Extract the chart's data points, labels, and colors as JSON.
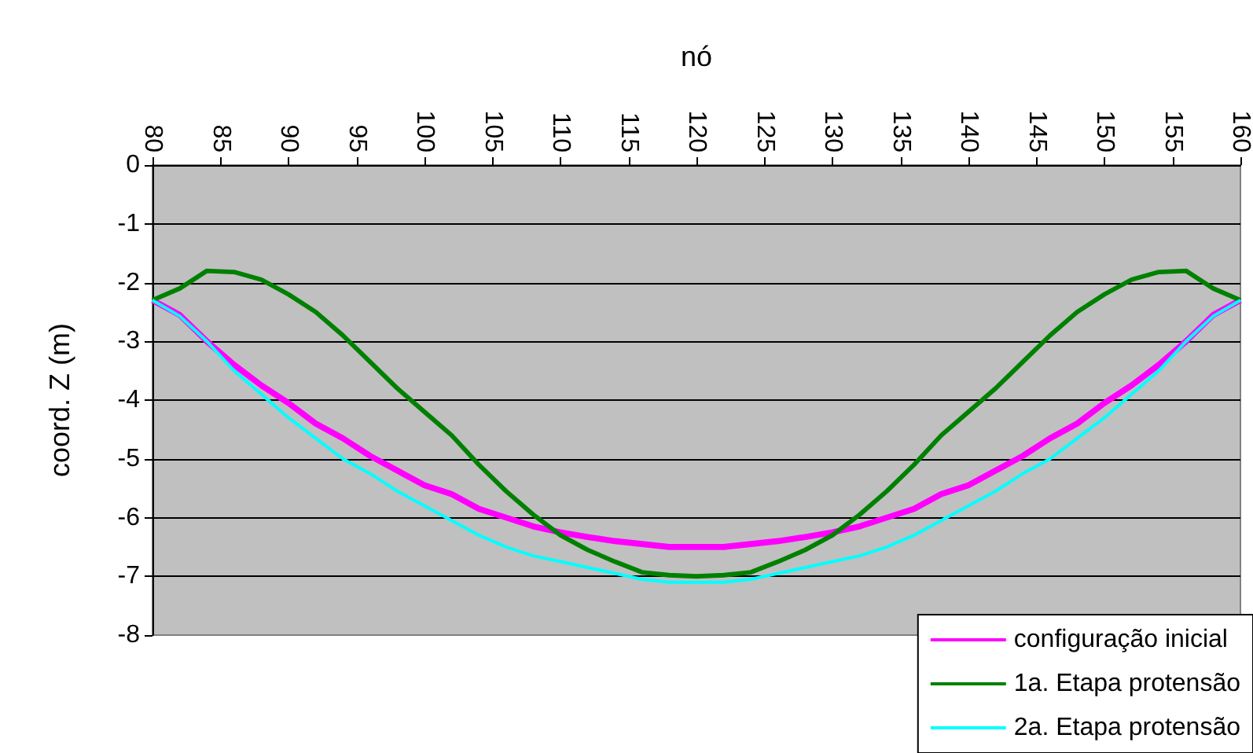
{
  "chart_data": {
    "type": "line",
    "xlabel": "nó",
    "ylabel": "coord. Z (m)",
    "x": [
      80,
      82,
      84,
      86,
      88,
      90,
      92,
      94,
      96,
      98,
      100,
      102,
      104,
      106,
      108,
      110,
      112,
      114,
      116,
      118,
      120,
      122,
      124,
      126,
      128,
      130,
      132,
      134,
      136,
      138,
      140,
      142,
      144,
      146,
      148,
      150,
      152,
      154,
      156,
      158,
      160
    ],
    "series": [
      {
        "name": "configuração inicial",
        "color": "#ff00ff",
        "values": [
          -2.3,
          -2.55,
          -3.0,
          -3.4,
          -3.75,
          -4.05,
          -4.4,
          -4.65,
          -4.95,
          -5.2,
          -5.45,
          -5.6,
          -5.85,
          -6.0,
          -6.15,
          -6.25,
          -6.33,
          -6.4,
          -6.45,
          -6.5,
          -6.5,
          -6.5,
          -6.45,
          -6.4,
          -6.33,
          -6.25,
          -6.15,
          -6.0,
          -5.85,
          -5.6,
          -5.45,
          -5.2,
          -4.95,
          -4.65,
          -4.4,
          -4.05,
          -3.75,
          -3.4,
          -3.0,
          -2.55,
          -2.3
        ]
      },
      {
        "name": "1a. Etapa protensão",
        "color": "#008000",
        "values": [
          -2.3,
          -2.1,
          -1.8,
          -1.82,
          -1.95,
          -2.2,
          -2.5,
          -2.9,
          -3.35,
          -3.8,
          -4.2,
          -4.6,
          -5.1,
          -5.55,
          -5.95,
          -6.3,
          -6.55,
          -6.75,
          -6.93,
          -6.98,
          -7.0,
          -6.98,
          -6.93,
          -6.75,
          -6.55,
          -6.3,
          -5.95,
          -5.55,
          -5.1,
          -4.6,
          -4.2,
          -3.8,
          -3.35,
          -2.9,
          -2.5,
          -2.2,
          -1.95,
          -1.82,
          -1.8,
          -2.1,
          -2.3
        ]
      },
      {
        "name": "2a. Etapa protensão",
        "color": "#00ffff",
        "values": [
          -2.3,
          -2.57,
          -3.0,
          -3.5,
          -3.9,
          -4.3,
          -4.65,
          -5.0,
          -5.25,
          -5.55,
          -5.8,
          -6.05,
          -6.3,
          -6.5,
          -6.65,
          -6.75,
          -6.85,
          -6.95,
          -7.05,
          -7.1,
          -7.1,
          -7.1,
          -7.05,
          -6.95,
          -6.85,
          -6.75,
          -6.65,
          -6.5,
          -6.3,
          -6.05,
          -5.8,
          -5.55,
          -5.25,
          -5.0,
          -4.65,
          -4.3,
          -3.9,
          -3.5,
          -3.0,
          -2.57,
          -2.3
        ]
      }
    ],
    "xlim": [
      80,
      160
    ],
    "xticks": [
      80,
      85,
      90,
      95,
      100,
      105,
      110,
      115,
      120,
      125,
      130,
      135,
      140,
      145,
      150,
      155,
      160
    ],
    "ylim": [
      -8,
      0
    ],
    "yticks": [
      -8,
      -7,
      -6,
      -5,
      -4,
      -3,
      -2,
      -1,
      0
    ],
    "grid": "y",
    "legend": "bottom right",
    "marker": "none",
    "line_style": "solid"
  }
}
